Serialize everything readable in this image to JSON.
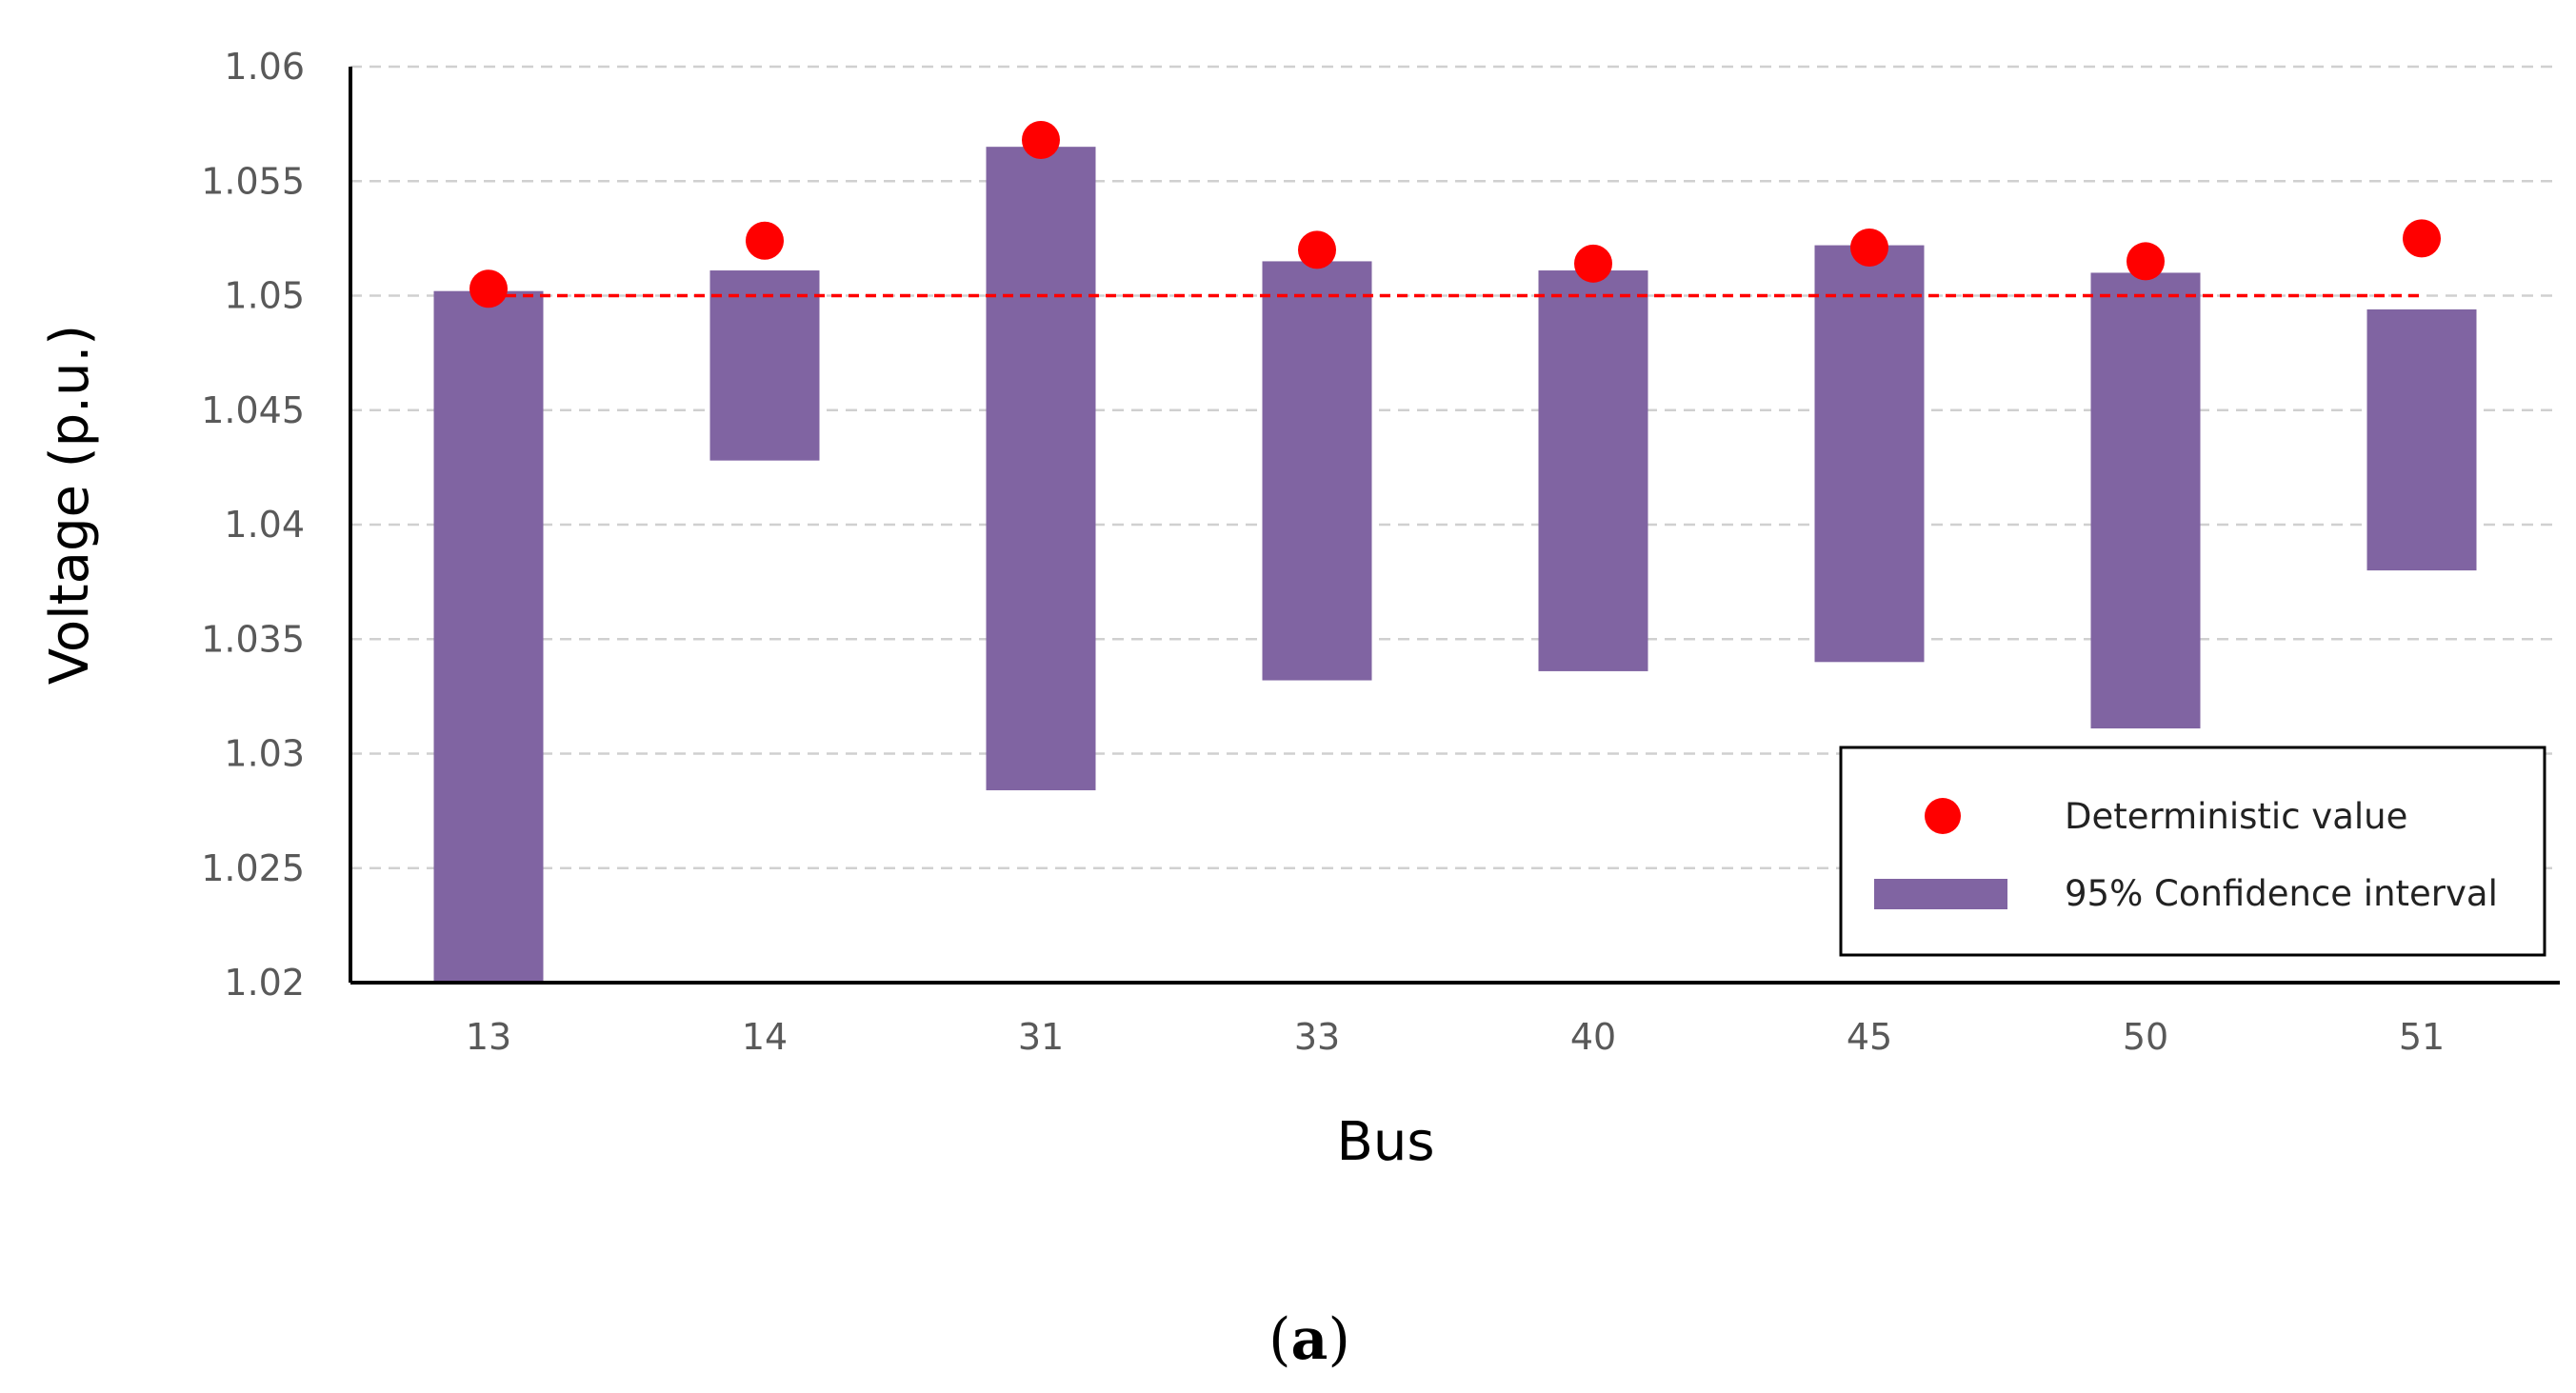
{
  "chart_data": {
    "type": "bar",
    "title": "",
    "xlabel": "Bus",
    "ylabel": "Voltage (p.u.)",
    "categories": [
      "13",
      "14",
      "31",
      "33",
      "40",
      "45",
      "50",
      "51"
    ],
    "ylim": [
      1.02,
      1.06
    ],
    "yticks": [
      "1.02",
      "1.025",
      "1.03",
      "1.035",
      "1.04",
      "1.045",
      "1.05",
      "1.055",
      "1.06"
    ],
    "series": [
      {
        "name": "95% Confidence interval",
        "kind": "floating-bar",
        "color": "#8064a2",
        "low": [
          1.02,
          1.0428,
          1.0284,
          1.0332,
          1.0336,
          1.034,
          1.0311,
          1.038
        ],
        "high": [
          1.0502,
          1.0511,
          1.0565,
          1.0515,
          1.0511,
          1.0522,
          1.051,
          1.0494
        ]
      },
      {
        "name": "Deterministic value",
        "kind": "scatter",
        "color": "#ff0000",
        "values": [
          1.0503,
          1.0524,
          1.0568,
          1.052,
          1.0514,
          1.0521,
          1.0515,
          1.0525
        ]
      }
    ],
    "reference_line": {
      "value": 1.05,
      "style": "dashed",
      "color": "#ff0000"
    },
    "grid": "horizontal-dashed",
    "legend_position": "bottom-right"
  },
  "caption": {
    "open": "(",
    "letter": "a",
    "close": ")"
  }
}
